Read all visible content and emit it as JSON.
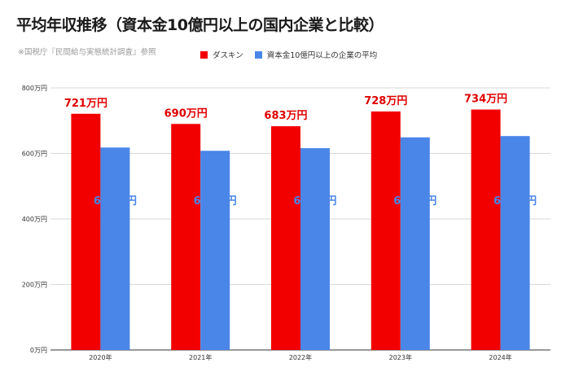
{
  "title": "平均年収推移（資本金10億円以上の国内企業と比較）",
  "source": "※国税庁『民間給与実態統計調査』参照",
  "colors": {
    "series1": "#f20000",
    "series2": "#4a86e8",
    "series2_label": "#4a86e8",
    "series1_label": "#e00000"
  },
  "chart_data": {
    "type": "bar",
    "categories": [
      "2020年",
      "2021年",
      "2022年",
      "2023年",
      "2024年"
    ],
    "series": [
      {
        "name": "ダスキン",
        "values": [
          721,
          690,
          683,
          728,
          734
        ],
        "labels": [
          "721万円",
          "690万円",
          "683万円",
          "728万円",
          "734万円"
        ]
      },
      {
        "name": "資本金10億円以上の企業の平均",
        "values": [
          618,
          608,
          616,
          649,
          653
        ],
        "labels": [
          "618万円",
          "608万円",
          "616万円",
          "649万円",
          "653万円"
        ]
      }
    ],
    "yticks": [
      0,
      200,
      400,
      600,
      800
    ],
    "ytick_labels": [
      "0万円",
      "200万円",
      "400万円",
      "600万円",
      "800万円"
    ],
    "ylim": [
      0,
      800
    ],
    "grid": true,
    "legend": "top"
  }
}
